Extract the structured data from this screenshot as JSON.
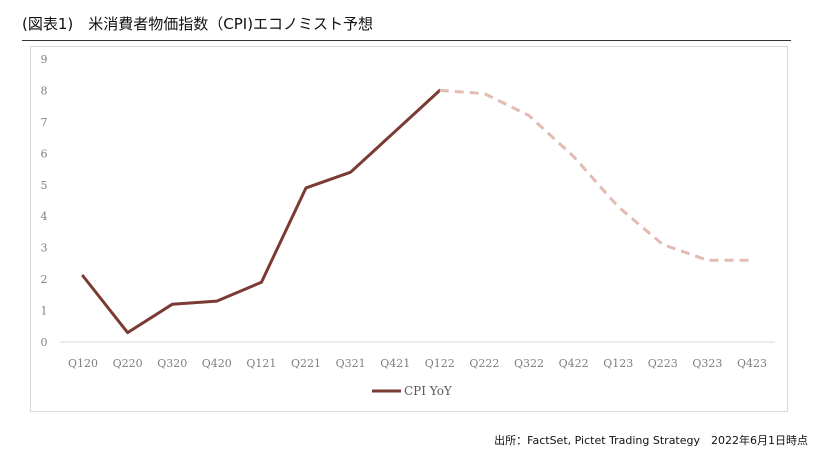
{
  "title": "(図表1)　米消費者物価指数（CPI)エコノミスト予想",
  "source": "出所：FactSet, Pictet Trading Strategy　2022年6月1日時点",
  "colors": {
    "actual": "#7b3b35",
    "forecast": "#e2bcb2",
    "axis": "#d9d9d9",
    "tick_text": "#7f7f7f"
  },
  "chart_data": {
    "type": "line",
    "categories": [
      "Q120",
      "Q220",
      "Q320",
      "Q420",
      "Q121",
      "Q221",
      "Q321",
      "Q421",
      "Q122",
      "Q222",
      "Q322",
      "Q422",
      "Q123",
      "Q223",
      "Q323",
      "Q423"
    ],
    "series": [
      {
        "name": "CPI YoY",
        "style": "solid",
        "values": [
          2.1,
          0.3,
          1.2,
          1.3,
          1.9,
          4.9,
          5.4,
          6.7,
          8.0,
          null,
          null,
          null,
          null,
          null,
          null,
          null
        ]
      },
      {
        "style": "dashed",
        "values": [
          null,
          null,
          null,
          null,
          null,
          null,
          null,
          null,
          8.0,
          7.9,
          7.2,
          5.9,
          4.3,
          3.1,
          2.6,
          2.6
        ]
      }
    ],
    "ylim": [
      0,
      9
    ],
    "yticks": [
      "0",
      "1",
      "2",
      "3",
      "4",
      "5",
      "6",
      "7",
      "8",
      "9"
    ],
    "legend_position": "bottom",
    "grid": false
  }
}
